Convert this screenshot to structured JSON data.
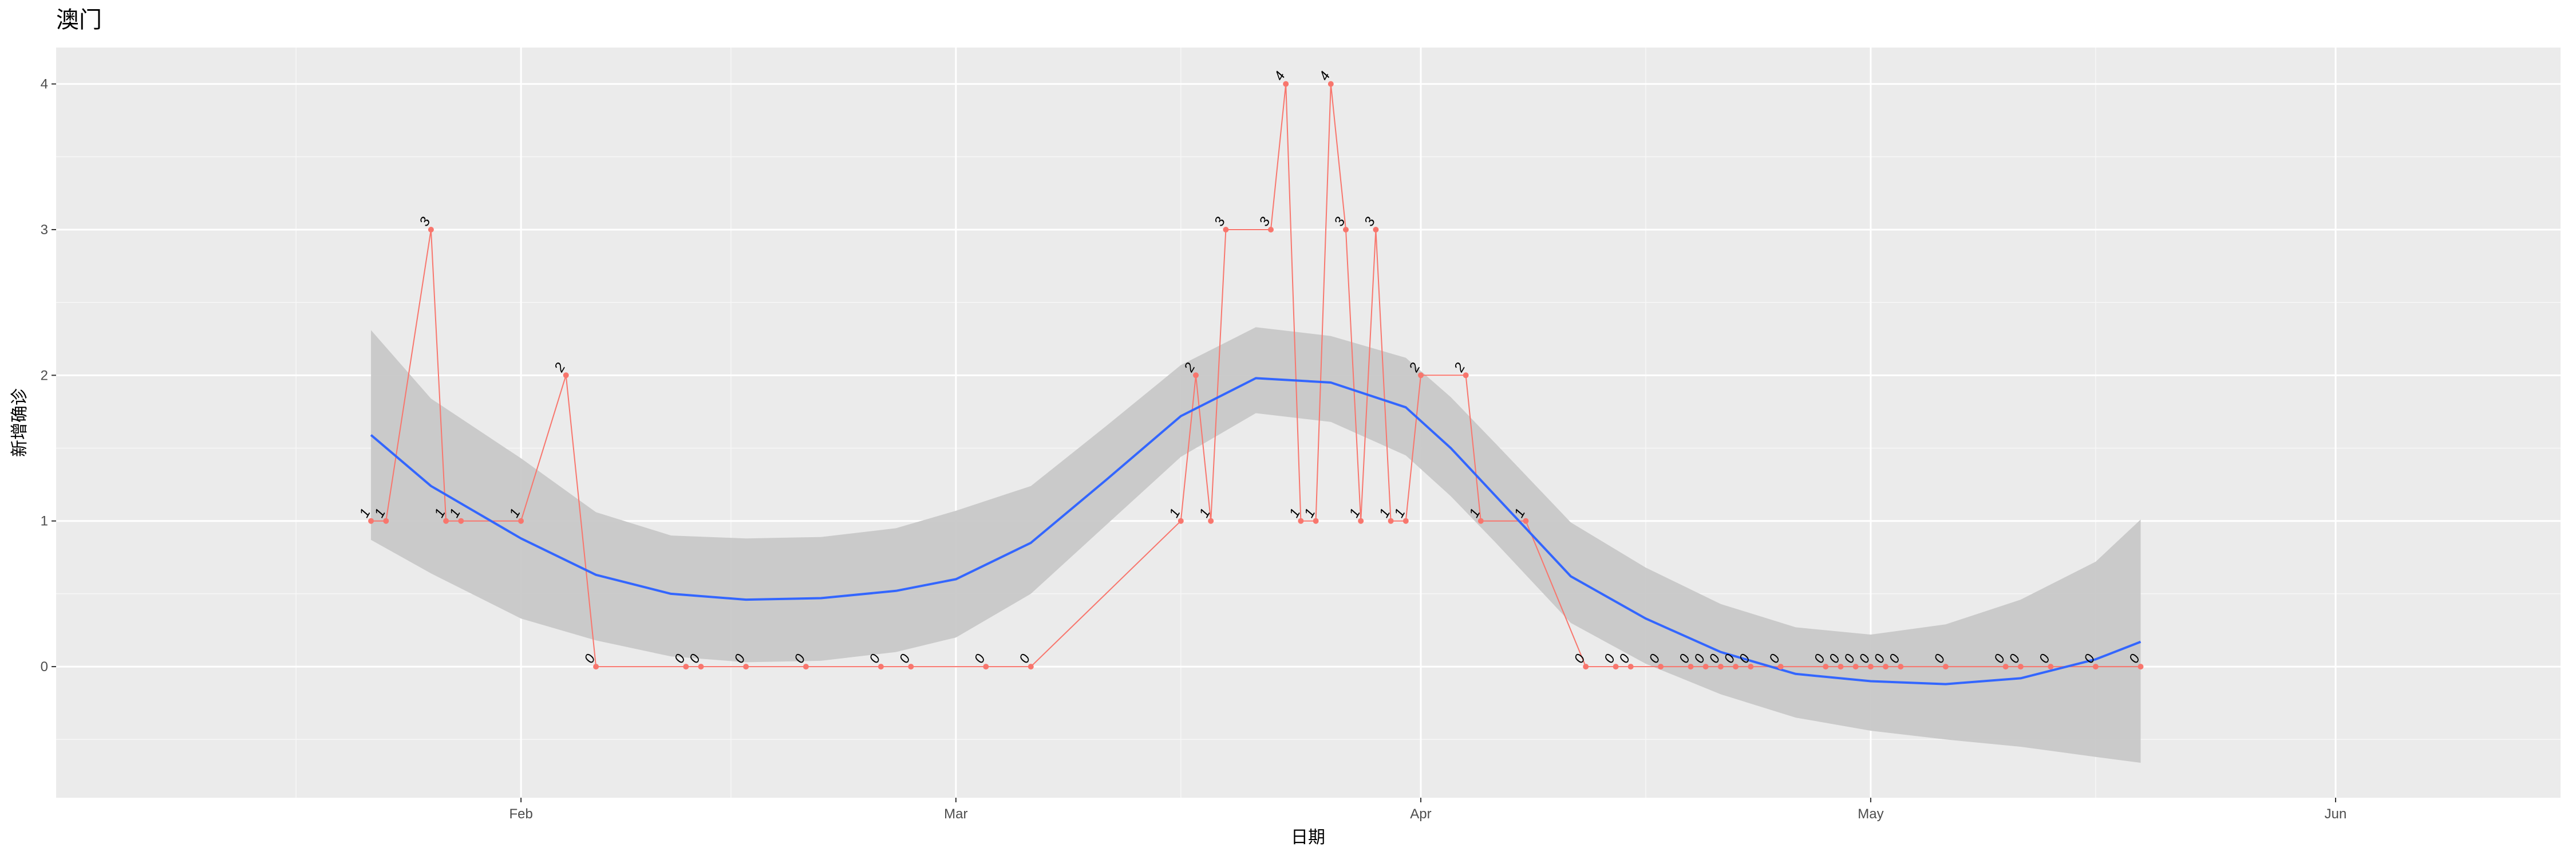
{
  "chart_data": {
    "type": "line",
    "title": "澳门",
    "xlabel": "日期",
    "ylabel": "新增确诊",
    "x_tick_labels": [
      "Feb",
      "Mar",
      "Apr",
      "May",
      "Jun"
    ],
    "x_tick_dates": [
      "2020-02-01",
      "2020-03-01",
      "2020-04-01",
      "2020-05-01",
      "2020-06-01"
    ],
    "x_range": [
      "2020-01-01",
      "2020-06-16"
    ],
    "y_tick_labels": [
      "0",
      "1",
      "2",
      "3",
      "4"
    ],
    "y_ticks": [
      0,
      1,
      2,
      3,
      4
    ],
    "ylim": [
      -0.9,
      4.25
    ],
    "grid": true,
    "series": [
      {
        "type": "line-points",
        "color": "#f8766d",
        "points": [
          [
            "2020-01-22",
            1
          ],
          [
            "2020-01-23",
            1
          ],
          [
            "2020-01-26",
            3
          ],
          [
            "2020-01-27",
            1
          ],
          [
            "2020-01-28",
            1
          ],
          [
            "2020-02-01",
            1
          ],
          [
            "2020-02-04",
            2
          ],
          [
            "2020-02-06",
            0
          ],
          [
            "2020-02-12",
            0
          ],
          [
            "2020-02-13",
            0
          ],
          [
            "2020-02-16",
            0
          ],
          [
            "2020-02-20",
            0
          ],
          [
            "2020-02-25",
            0
          ],
          [
            "2020-02-27",
            0
          ],
          [
            "2020-03-03",
            0
          ],
          [
            "2020-03-06",
            0
          ],
          [
            "2020-03-16",
            1
          ],
          [
            "2020-03-17",
            2
          ],
          [
            "2020-03-18",
            1
          ],
          [
            "2020-03-19",
            3
          ],
          [
            "2020-03-22",
            3
          ],
          [
            "2020-03-23",
            4
          ],
          [
            "2020-03-24",
            1
          ],
          [
            "2020-03-25",
            1
          ],
          [
            "2020-03-26",
            4
          ],
          [
            "2020-03-27",
            3
          ],
          [
            "2020-03-28",
            1
          ],
          [
            "2020-03-29",
            3
          ],
          [
            "2020-03-30",
            1
          ],
          [
            "2020-03-31",
            1
          ],
          [
            "2020-04-01",
            2
          ],
          [
            "2020-04-04",
            2
          ],
          [
            "2020-04-05",
            1
          ],
          [
            "2020-04-08",
            1
          ],
          [
            "2020-04-12",
            0
          ],
          [
            "2020-04-14",
            0
          ],
          [
            "2020-04-15",
            0
          ],
          [
            "2020-04-17",
            0
          ],
          [
            "2020-04-19",
            0
          ],
          [
            "2020-04-20",
            0
          ],
          [
            "2020-04-21",
            0
          ],
          [
            "2020-04-22",
            0
          ],
          [
            "2020-04-23",
            0
          ],
          [
            "2020-04-25",
            0
          ],
          [
            "2020-04-28",
            0
          ],
          [
            "2020-04-29",
            0
          ],
          [
            "2020-04-30",
            0
          ],
          [
            "2020-05-01",
            0
          ],
          [
            "2020-05-02",
            0
          ],
          [
            "2020-05-03",
            0
          ],
          [
            "2020-05-06",
            0
          ],
          [
            "2020-05-10",
            0
          ],
          [
            "2020-05-11",
            0
          ],
          [
            "2020-05-13",
            0
          ],
          [
            "2020-05-16",
            0
          ],
          [
            "2020-05-19",
            0
          ]
        ]
      },
      {
        "type": "smooth",
        "color": "#3366ff",
        "band_color": "#c8c8c8",
        "x": [
          "2020-01-22",
          "2020-01-26",
          "2020-02-01",
          "2020-02-06",
          "2020-02-11",
          "2020-02-16",
          "2020-02-21",
          "2020-02-26",
          "2020-03-01",
          "2020-03-06",
          "2020-03-11",
          "2020-03-16",
          "2020-03-21",
          "2020-03-26",
          "2020-03-31",
          "2020-04-03",
          "2020-04-06",
          "2020-04-11",
          "2020-04-16",
          "2020-04-21",
          "2020-04-26",
          "2020-05-01",
          "2020-05-06",
          "2020-05-11",
          "2020-05-16",
          "2020-05-19"
        ],
        "fit": [
          1.59,
          1.24,
          0.88,
          0.63,
          0.5,
          0.46,
          0.47,
          0.52,
          0.6,
          0.85,
          1.28,
          1.72,
          1.98,
          1.95,
          1.78,
          1.5,
          1.17,
          0.62,
          0.33,
          0.1,
          -0.05,
          -0.1,
          -0.12,
          -0.08,
          0.05,
          0.17
        ],
        "lower": [
          0.87,
          0.64,
          0.33,
          0.18,
          0.07,
          0.03,
          0.04,
          0.1,
          0.2,
          0.5,
          0.97,
          1.44,
          1.74,
          1.68,
          1.45,
          1.17,
          0.85,
          0.3,
          0.02,
          -0.19,
          -0.35,
          -0.44,
          -0.5,
          -0.55,
          -0.62,
          -0.66
        ],
        "upper": [
          2.31,
          1.84,
          1.43,
          1.06,
          0.9,
          0.88,
          0.89,
          0.95,
          1.07,
          1.24,
          1.65,
          2.07,
          2.33,
          2.27,
          2.12,
          1.85,
          1.53,
          0.99,
          0.68,
          0.43,
          0.27,
          0.22,
          0.29,
          0.46,
          0.72,
          1.01
        ]
      }
    ]
  }
}
